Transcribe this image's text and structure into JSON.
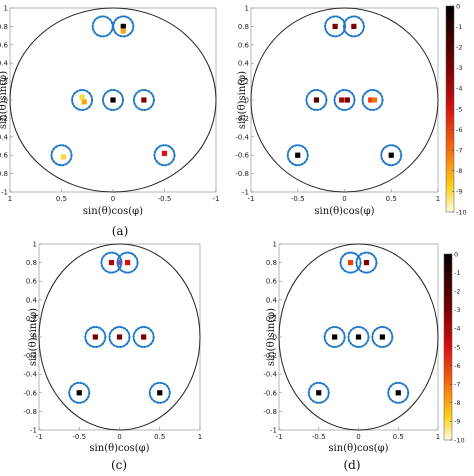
{
  "chart_data": [
    {
      "type": "scatter",
      "caption": "(a)",
      "xlabel": "sin(θ)cos(φ)",
      "ylabel": "sin(θ)sin(φ)",
      "xlim": [
        1,
        -1
      ],
      "ylim": [
        -1,
        1
      ],
      "xticks": [
        "1",
        "0.5",
        "0",
        "-0.5",
        "-1"
      ],
      "yticks": [
        "1",
        "0.8",
        "0.6",
        "0.4",
        "0.2",
        "0",
        "-0.2",
        "-0.4",
        "-0.6",
        "-0.8",
        "-1"
      ],
      "circle_radius": 1,
      "targets": [
        {
          "x": 0.1,
          "y": 0.8
        },
        {
          "x": -0.1,
          "y": 0.8
        },
        {
          "x": 0.3,
          "y": 0
        },
        {
          "x": 0,
          "y": 0
        },
        {
          "x": -0.3,
          "y": 0
        },
        {
          "x": 0.5,
          "y": -0.6
        },
        {
          "x": -0.5,
          "y": -0.6
        }
      ],
      "points": [
        {
          "x": -0.1,
          "y": 0.8,
          "value": 0
        },
        {
          "x": -0.1,
          "y": 0.75,
          "value": -8
        },
        {
          "x": 0.28,
          "y": -0.02,
          "value": -8
        },
        {
          "x": 0.3,
          "y": 0.03,
          "value": -9
        },
        {
          "x": 0,
          "y": 0,
          "value": 0
        },
        {
          "x": -0.3,
          "y": 0,
          "value": -3
        },
        {
          "x": 0.48,
          "y": -0.62,
          "value": -9
        },
        {
          "x": -0.5,
          "y": -0.58,
          "value": -5
        }
      ]
    },
    {
      "type": "scatter",
      "caption": "(b)",
      "xlabel": "sin(θ)cos(φ)",
      "ylabel": "sin(θ)sin(φ)",
      "xlim": [
        -1,
        1
      ],
      "ylim": [
        -1,
        1
      ],
      "xticks": [
        "-1",
        "-0.5",
        "0",
        "0.5",
        "1"
      ],
      "yticks": [
        "1",
        "0.8",
        "0.6",
        "0.4",
        "0.2",
        "0",
        "-0.2",
        "-0.4",
        "-0.6",
        "-0.8",
        "-1"
      ],
      "circle_radius": 1,
      "colorbar": {
        "ticks": [
          "0",
          "-1",
          "-2",
          "-3",
          "-4",
          "-5",
          "-6",
          "-7",
          "-8",
          "-9",
          "-10"
        ],
        "min": -10,
        "max": 0
      },
      "targets": [
        {
          "x": -0.1,
          "y": 0.8
        },
        {
          "x": 0.1,
          "y": 0.8
        },
        {
          "x": -0.3,
          "y": 0
        },
        {
          "x": 0,
          "y": 0
        },
        {
          "x": 0.3,
          "y": 0
        },
        {
          "x": -0.5,
          "y": -0.6
        },
        {
          "x": 0.5,
          "y": -0.6
        }
      ],
      "points": [
        {
          "x": -0.1,
          "y": 0.8,
          "value": -3
        },
        {
          "x": 0.1,
          "y": 0.8,
          "value": -3
        },
        {
          "x": -0.3,
          "y": 0,
          "value": -2
        },
        {
          "x": -0.03,
          "y": 0,
          "value": -4
        },
        {
          "x": 0.03,
          "y": 0,
          "value": -3
        },
        {
          "x": 0.28,
          "y": 0,
          "value": -6
        },
        {
          "x": 0.32,
          "y": 0,
          "value": -7
        },
        {
          "x": -0.5,
          "y": -0.6,
          "value": 0
        },
        {
          "x": 0.5,
          "y": -0.6,
          "value": 0
        }
      ]
    },
    {
      "type": "scatter",
      "caption": "(c)",
      "xlabel": "sin(θ)cos(φ)",
      "ylabel": "sin(θ)sin(φ)",
      "xlim": [
        -1,
        1
      ],
      "ylim": [
        -1,
        1
      ],
      "xticks": [
        "-1",
        "-0.5",
        "0",
        "0.5",
        "1"
      ],
      "yticks": [
        "1",
        "0.8",
        "0.6",
        "0.4",
        "0.2",
        "0",
        "-0.2",
        "-0.4",
        "-0.6",
        "-0.8",
        "-1"
      ],
      "circle_radius": 1,
      "targets": [
        {
          "x": -0.1,
          "y": 0.8
        },
        {
          "x": 0.1,
          "y": 0.8
        },
        {
          "x": -0.3,
          "y": 0
        },
        {
          "x": 0,
          "y": 0
        },
        {
          "x": 0.3,
          "y": 0
        },
        {
          "x": -0.5,
          "y": -0.6
        },
        {
          "x": 0.5,
          "y": -0.6
        }
      ],
      "points": [
        {
          "x": -0.1,
          "y": 0.8,
          "value": -4
        },
        {
          "x": 0,
          "y": 0.8,
          "value": -2,
          "color": "#6b5bb5"
        },
        {
          "x": 0.1,
          "y": 0.8,
          "value": -5
        },
        {
          "x": -0.3,
          "y": 0,
          "value": -3
        },
        {
          "x": 0,
          "y": 0,
          "value": -3
        },
        {
          "x": 0.3,
          "y": 0,
          "value": -3
        },
        {
          "x": -0.5,
          "y": -0.6,
          "value": 0
        },
        {
          "x": 0.5,
          "y": -0.6,
          "value": 0
        }
      ]
    },
    {
      "type": "scatter",
      "caption": "(d)",
      "xlabel": "sin(θ)cos(φ)",
      "ylabel": "sin(θ)sin(φ)",
      "xlim": [
        -1,
        1
      ],
      "ylim": [
        -1,
        1
      ],
      "xticks": [
        "-1",
        "-0.5",
        "0",
        "0.5",
        "1"
      ],
      "yticks": [
        "1",
        "0.8",
        "0.6",
        "0.4",
        "0.2",
        "0",
        "-0.2",
        "-0.4",
        "-0.6",
        "-0.8",
        "-1"
      ],
      "circle_radius": 1,
      "colorbar": {
        "ticks": [
          "0",
          "-1",
          "-2",
          "-3",
          "-4",
          "-5",
          "-6",
          "-7",
          "-8",
          "-9",
          "-10"
        ],
        "min": -10,
        "max": 0
      },
      "targets": [
        {
          "x": -0.1,
          "y": 0.8
        },
        {
          "x": 0.1,
          "y": 0.8
        },
        {
          "x": -0.3,
          "y": 0
        },
        {
          "x": 0,
          "y": 0
        },
        {
          "x": 0.3,
          "y": 0
        },
        {
          "x": -0.5,
          "y": -0.6
        },
        {
          "x": 0.5,
          "y": -0.6
        }
      ],
      "points": [
        {
          "x": -0.1,
          "y": 0.8,
          "value": -6
        },
        {
          "x": 0.1,
          "y": 0.8,
          "value": -3
        },
        {
          "x": -0.3,
          "y": 0,
          "value": 0
        },
        {
          "x": 0,
          "y": 0,
          "value": 0
        },
        {
          "x": 0.3,
          "y": 0,
          "value": 0
        },
        {
          "x": -0.5,
          "y": -0.6,
          "value": 0
        },
        {
          "x": 0.5,
          "y": -0.6,
          "value": 0
        }
      ]
    }
  ]
}
